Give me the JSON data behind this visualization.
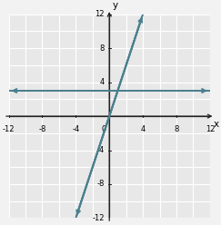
{
  "xlim": [
    -12,
    12
  ],
  "ylim": [
    -12,
    12
  ],
  "xticks": [
    -12,
    -8,
    -4,
    4,
    8,
    12
  ],
  "yticks": [
    -12,
    -8,
    -4,
    4,
    8,
    12
  ],
  "xlabel": "x",
  "ylabel": "y",
  "line1_color": "#4a7f8e",
  "line2_color": "#4a7f8e",
  "line_lw": 1.4,
  "bg_color": "#f2f2f2",
  "plot_bg": "#e8e8e8",
  "grid_color": "#ffffff",
  "axis_color": "#222222",
  "tick_fontsize": 6.0,
  "label_fontsize": 7.5
}
